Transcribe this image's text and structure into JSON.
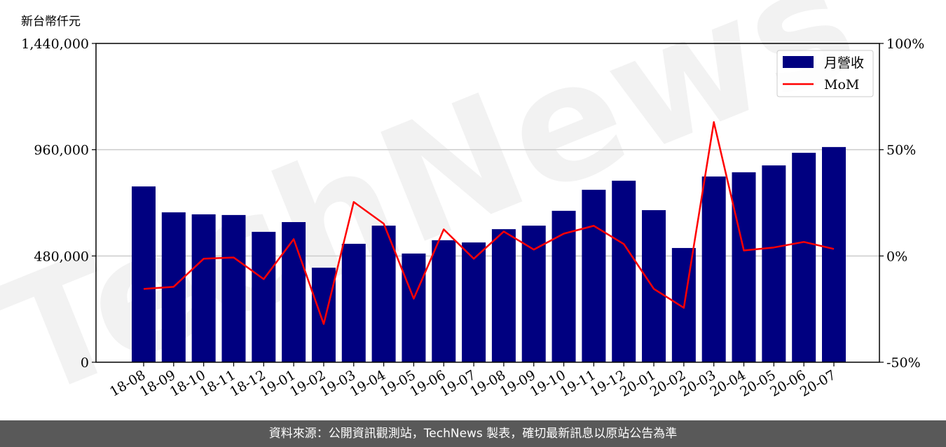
{
  "unit_label": "新台幣仟元",
  "footer": "資料來源：公開資訊觀測站，TechNews 製表，確切最新訊息以原站公告為準",
  "watermark": "TechNews",
  "colors": {
    "bar": "#000080",
    "line": "#ff0000",
    "grid": "#cccccc",
    "footer_bg": "#595959"
  },
  "chart_data": {
    "type": "bar+line",
    "categories": [
      "18-08",
      "18-09",
      "18-10",
      "18-11",
      "18-12",
      "19-01",
      "19-02",
      "19-03",
      "19-04",
      "19-05",
      "19-06",
      "19-07",
      "19-08",
      "19-09",
      "19-10",
      "19-11",
      "19-12",
      "20-01",
      "20-02",
      "20-03",
      "20-04",
      "20-05",
      "20-06",
      "20-07"
    ],
    "series": [
      {
        "name": "月營收",
        "type": "bar",
        "axis": "left",
        "values": [
          794000,
          677000,
          668000,
          665000,
          589000,
          633000,
          427000,
          535000,
          617000,
          491000,
          551000,
          541000,
          601000,
          617000,
          684000,
          779000,
          820000,
          687000,
          516000,
          839000,
          858000,
          889000,
          946000,
          972000
        ]
      },
      {
        "name": "MoM",
        "type": "line",
        "axis": "right",
        "values": [
          -15.5,
          -14.5,
          -1.3,
          -0.7,
          -10.9,
          7.9,
          -32.0,
          25.4,
          15.2,
          -20.1,
          12.5,
          -1.3,
          11.5,
          3.0,
          10.5,
          14.2,
          5.6,
          -15.5,
          -24.4,
          63.0,
          2.6,
          4.0,
          6.6,
          3.3
        ]
      }
    ],
    "ylim": [
      0,
      1440000
    ],
    "yticks": [
      0,
      480000,
      960000,
      1440000
    ],
    "ytick_labels": [
      "0",
      "480,000",
      "960,000",
      "1,440,000"
    ],
    "y2lim": [
      -50,
      100
    ],
    "y2ticks": [
      -50,
      0,
      50,
      100
    ],
    "y2tick_labels": [
      "-50%",
      "0%",
      "50%",
      "100%"
    ],
    "ylabel": "新台幣仟元",
    "grid": "horizontal",
    "legend_position": "top-right"
  }
}
